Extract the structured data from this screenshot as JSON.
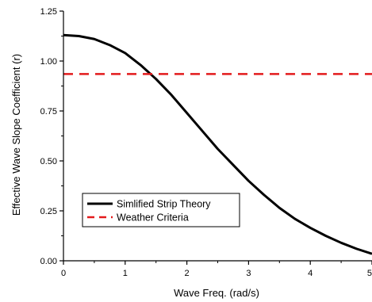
{
  "chart_data": {
    "type": "line",
    "title": "",
    "xlabel": "Wave Freq. (rad/s)",
    "ylabel": "Effective Wave Slope Coefficient (r)",
    "xlim": [
      0,
      5
    ],
    "ylim": [
      0,
      1.25
    ],
    "xticks": [
      "0",
      "1",
      "2",
      "3",
      "4",
      "5"
    ],
    "yticks": [
      "0.00",
      "0.25",
      "0.50",
      "0.75",
      "1.00",
      "1.25"
    ],
    "grid": false,
    "legend_position": "bottom-left",
    "series": [
      {
        "name": "Simlified Strip Theory",
        "color": "#000000",
        "style": "solid",
        "x": [
          0,
          0.25,
          0.5,
          0.75,
          1.0,
          1.25,
          1.5,
          1.75,
          2.0,
          2.25,
          2.5,
          2.75,
          3.0,
          3.25,
          3.5,
          3.75,
          4.0,
          4.25,
          4.5,
          4.75,
          5.0
        ],
        "y": [
          1.13,
          1.125,
          1.11,
          1.08,
          1.04,
          0.98,
          0.91,
          0.83,
          0.74,
          0.65,
          0.56,
          0.48,
          0.4,
          0.33,
          0.265,
          0.21,
          0.165,
          0.125,
          0.09,
          0.06,
          0.035
        ]
      },
      {
        "name": "Weather Criteria",
        "color": "#e31a1c",
        "style": "dashed",
        "x": [
          0,
          5
        ],
        "y": [
          0.935,
          0.935
        ]
      }
    ]
  }
}
